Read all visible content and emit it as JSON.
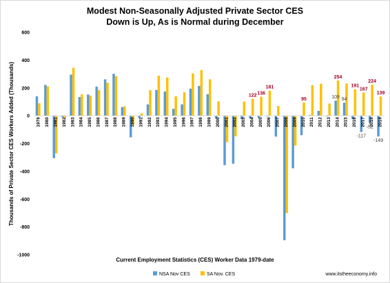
{
  "chart_data": {
    "type": "bar",
    "title": "Modest Non-Seasonally Adjusted Private Sector CES",
    "subtitle": "Down is Up, As is Normal during December",
    "xlabel": "Current Employment Statistics (CES) Worker Data 1979-date",
    "ylabel": "Thousands of Private Sector CES Workers Added (Thousands)",
    "ylim": [
      -1000,
      600
    ],
    "yticks": [
      600,
      400,
      200,
      0,
      -200,
      -400,
      -600,
      -800,
      -1000
    ],
    "grid": false,
    "legend_position": "bottom",
    "categories": [
      "1979",
      "1980",
      "1981",
      "1982",
      "1983",
      "1984",
      "1985",
      "1986",
      "1987",
      "1988",
      "1989",
      "1990",
      "1991",
      "1992",
      "1993",
      "1994",
      "1995",
      "1996",
      "1997",
      "1998",
      "1999",
      "2000",
      "2001",
      "2002",
      "2003",
      "2004",
      "2005",
      "2006",
      "2007",
      "2008",
      "2009",
      "2010",
      "2011",
      "2012",
      "2013",
      "2014",
      "2015",
      "2016",
      "2017",
      "2018",
      "2019"
    ],
    "series": [
      {
        "name": "NSA Nov CES",
        "color": "#5b9bd5",
        "values": [
          140,
          222,
          -305,
          -10,
          296,
          135,
          153,
          210,
          262,
          302,
          62,
          -155,
          -15,
          82,
          185,
          175,
          50,
          82,
          195,
          215,
          155,
          -20,
          -355,
          -345,
          -25,
          -20,
          -15,
          -5,
          -150,
          -895,
          -378,
          -140,
          5,
          35,
          -5,
          109,
          94,
          -25,
          -117,
          -52,
          -149
        ]
      },
      {
        "name": "SA Nov. CES",
        "color": "#ffc000",
        "values": [
          90,
          212,
          -270,
          -12,
          345,
          155,
          145,
          185,
          238,
          286,
          68,
          -65,
          18,
          185,
          288,
          275,
          140,
          170,
          305,
          328,
          262,
          105,
          -190,
          -148,
          102,
          122,
          136,
          181,
          70,
          -700,
          -215,
          95,
          220,
          230,
          88,
          254,
          232,
          191,
          167,
          224,
          139
        ]
      }
    ],
    "data_labels": [
      {
        "category": "2004",
        "series": "SA Nov. CES",
        "text": "122",
        "style": "red"
      },
      {
        "category": "2005",
        "series": "SA Nov. CES",
        "text": "136",
        "style": "red"
      },
      {
        "category": "2006",
        "series": "SA Nov. CES",
        "text": "181",
        "style": "red"
      },
      {
        "category": "2010",
        "series": "SA Nov. CES",
        "text": "95",
        "style": "red"
      },
      {
        "category": "2014",
        "series": "NSA Nov CES",
        "text": "109",
        "style": "gray"
      },
      {
        "category": "2014",
        "series": "SA Nov. CES",
        "text": "254",
        "style": "red"
      },
      {
        "category": "2015",
        "series": "NSA Nov CES",
        "text": "94",
        "style": "gray"
      },
      {
        "category": "2016",
        "series": "SA Nov. CES",
        "text": "191",
        "style": "red"
      },
      {
        "category": "2017",
        "series": "SA Nov. CES",
        "text": "167",
        "style": "red"
      },
      {
        "category": "2017",
        "series": "NSA Nov CES",
        "text": "-117",
        "style": "gray"
      },
      {
        "category": "2018",
        "series": "SA Nov. CES",
        "text": "224",
        "style": "red"
      },
      {
        "category": "2018",
        "series": "NSA Nov CES",
        "text": "-52",
        "style": "gray"
      },
      {
        "category": "2019",
        "series": "SA Nov. CES",
        "text": "139",
        "style": "red"
      },
      {
        "category": "2019",
        "series": "NSA Nov CES",
        "text": "-149",
        "style": "gray"
      }
    ]
  },
  "credit": "www.itstheeconomy.info"
}
